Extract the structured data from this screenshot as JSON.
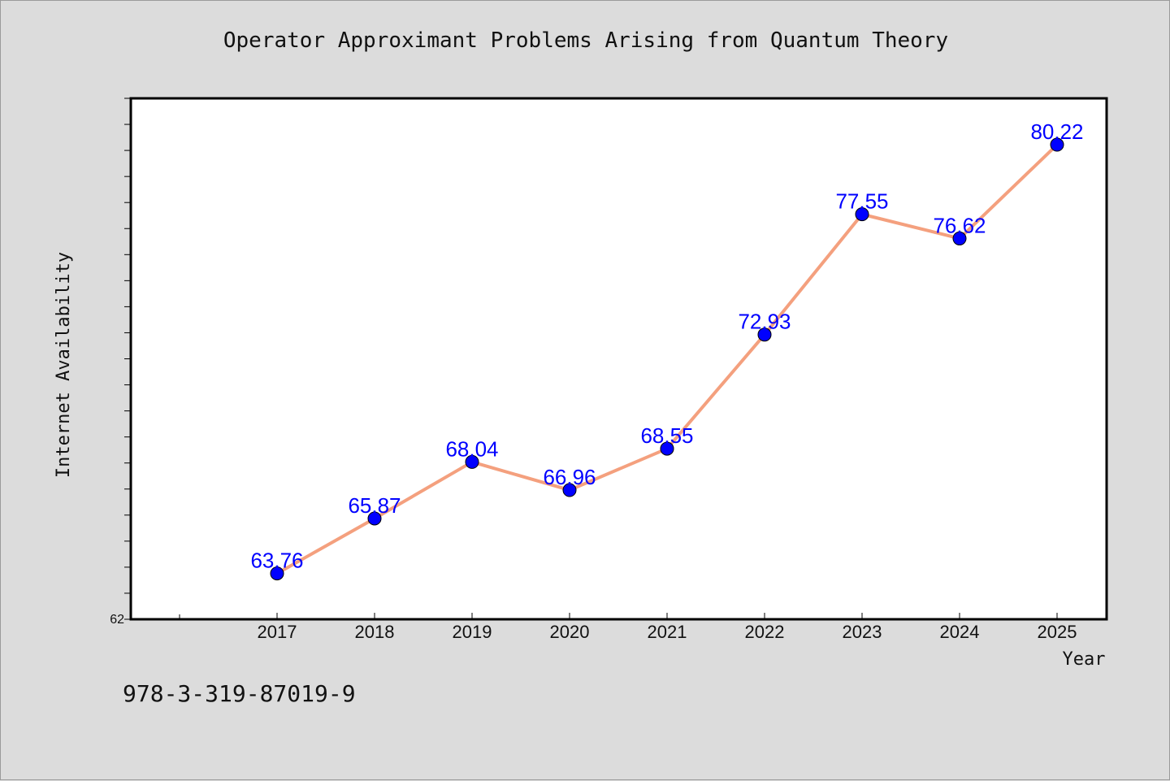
{
  "chart_data": {
    "type": "line",
    "title": "Operator Approximant Problems Arising from Quantum Theory",
    "xlabel": "Year",
    "ylabel": "Internet Availability",
    "categories": [
      "2017",
      "2018",
      "2019",
      "2020",
      "2021",
      "2022",
      "2023",
      "2024",
      "2025"
    ],
    "values": [
      63.76,
      65.87,
      68.04,
      66.96,
      68.55,
      72.93,
      77.55,
      76.62,
      80.22
    ],
    "data_labels": [
      "63.76",
      "65.87",
      "68.04",
      "66.96",
      "68.55",
      "72.93",
      "77.55",
      "76.62",
      "80.22"
    ],
    "ylim": [
      62,
      82
    ],
    "ytick_labels": [
      "62"
    ],
    "y_minor_tick_step": 1,
    "grid": false,
    "line_color": "#f4a07e",
    "marker_color": "#0000ff",
    "label_color": "#0000ff"
  },
  "footer": {
    "isbn": "978-3-319-87019-9"
  }
}
